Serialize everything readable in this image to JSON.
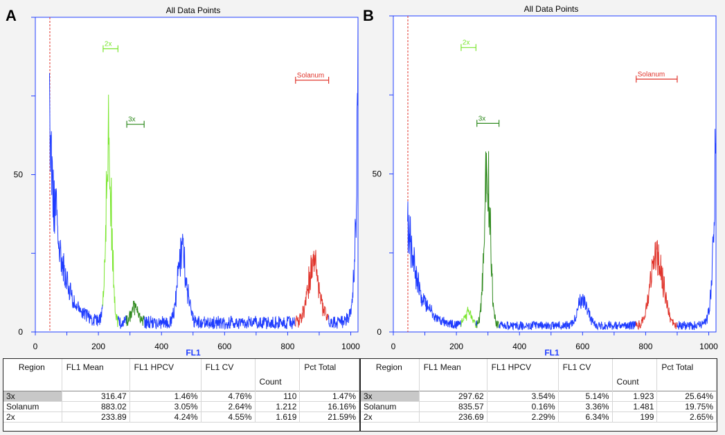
{
  "colors": {
    "axis": "#1f3cff",
    "gate_2x": "#7ae62e",
    "gate_3x": "#2f8a1e",
    "gate_solanum": "#e0342b",
    "threshold": "#e0342b",
    "background_series": "#1f3cff"
  },
  "panels": [
    {
      "id": "A",
      "label": "A",
      "title": "All Data Points",
      "xlabel": "FL1",
      "table": {
        "headers": [
          "Region",
          "FL1 Mean",
          "FL1 HPCV",
          "FL1 CV",
          "Count",
          "Pct Total"
        ],
        "rows": [
          {
            "region": "3x",
            "mean": "316.47",
            "hpcv": "1.46%",
            "cv": "4.76%",
            "count": "110",
            "pct": "1.47%"
          },
          {
            "region": "Solanum",
            "mean": "883.02",
            "hpcv": "3.05%",
            "cv": "2.64%",
            "count": "1.212",
            "pct": "16.16%"
          },
          {
            "region": "2x",
            "mean": "233.89",
            "hpcv": "4.24%",
            "cv": "4.55%",
            "count": "1.619",
            "pct": "21.59%"
          }
        ]
      }
    },
    {
      "id": "B",
      "label": "B",
      "title": "All Data Points",
      "xlabel": "FL1",
      "table": {
        "headers": [
          "Region",
          "FL1 Mean",
          "FL1 HPCV",
          "FL1 CV",
          "Count",
          "Pct Total"
        ],
        "rows": [
          {
            "region": "3x",
            "mean": "297.62",
            "hpcv": "3.54%",
            "cv": "5.14%",
            "count": "1.923",
            "pct": "25.64%"
          },
          {
            "region": "Solanum",
            "mean": "835.57",
            "hpcv": "0.16%",
            "cv": "3.36%",
            "count": "1.481",
            "pct": "19.75%"
          },
          {
            "region": "2x",
            "mean": "236.69",
            "hpcv": "2.29%",
            "cv": "6.34%",
            "count": "199",
            "pct": "2.65%"
          }
        ]
      }
    }
  ],
  "chart_data": [
    {
      "panel": "A",
      "type": "area",
      "title": "All Data Points",
      "xlabel": "FL1",
      "ylabel": "",
      "xlim": [
        0,
        1023
      ],
      "ylim": [
        0,
        100
      ],
      "xticks": [
        0,
        200,
        400,
        600,
        800,
        1000
      ],
      "yticks": [
        0,
        50
      ],
      "threshold_x": 45,
      "gates": [
        {
          "name": "2x",
          "x": [
            215,
            262
          ],
          "color": "gate_2x"
        },
        {
          "name": "3x",
          "x": [
            290,
            345
          ],
          "color": "gate_3x"
        },
        {
          "name": "Solanum",
          "x": [
            825,
            930
          ],
          "color": "gate_solanum"
        }
      ],
      "peaks": [
        {
          "center": 45,
          "height": 62,
          "sigma": 6,
          "gate": null
        },
        {
          "center": 233,
          "height": 56,
          "sigma": 9,
          "gate": "2x"
        },
        {
          "center": 316,
          "height": 5,
          "sigma": 12,
          "gate": "3x"
        },
        {
          "center": 466,
          "height": 22,
          "sigma": 14,
          "gate": null
        },
        {
          "center": 883,
          "height": 19,
          "sigma": 18,
          "gate": "Solanum"
        },
        {
          "center": 1015,
          "height": 30,
          "sigma": 8,
          "gate": null
        }
      ],
      "baseline": 3
    },
    {
      "panel": "B",
      "type": "area",
      "title": "All Data Points",
      "xlabel": "FL1",
      "ylabel": "",
      "xlim": [
        0,
        1023
      ],
      "ylim": [
        0,
        100
      ],
      "xticks": [
        0,
        200,
        400,
        600,
        800,
        1000
      ],
      "yticks": [
        0,
        50
      ],
      "threshold_x": 45,
      "gates": [
        {
          "name": "2x",
          "x": [
            215,
            262
          ],
          "color": "gate_2x"
        },
        {
          "name": "3x",
          "x": [
            265,
            335
          ],
          "color": "gate_3x"
        },
        {
          "name": "Solanum",
          "x": [
            770,
            900
          ],
          "color": "gate_solanum"
        }
      ],
      "peaks": [
        {
          "center": 45,
          "height": 35,
          "sigma": 7,
          "gate": null
        },
        {
          "center": 237,
          "height": 4,
          "sigma": 10,
          "gate": "2x"
        },
        {
          "center": 298,
          "height": 48,
          "sigma": 10,
          "gate": "3x"
        },
        {
          "center": 600,
          "height": 8,
          "sigma": 16,
          "gate": null
        },
        {
          "center": 836,
          "height": 22,
          "sigma": 20,
          "gate": "Solanum"
        },
        {
          "center": 1018,
          "height": 42,
          "sigma": 8,
          "gate": null
        }
      ],
      "baseline": 2
    }
  ]
}
